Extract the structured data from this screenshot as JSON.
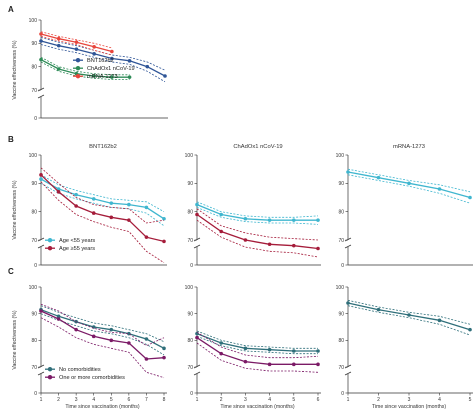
{
  "colors": {
    "bnt": "#2f5597",
    "chadox": "#2e8b57",
    "mrna": "#e8453c",
    "young": "#3fb6cf",
    "old": "#a51c3a",
    "nocomorb": "#2f6f7a",
    "comorb": "#7b1a66"
  },
  "chart_data": [
    {
      "panel": "A",
      "type": "line",
      "ylabel": "Vaccine effectiveness (%)",
      "x": [
        1,
        2,
        3,
        4,
        5,
        6,
        7,
        8
      ],
      "ylim": [
        0,
        100
      ],
      "xlim": [
        1,
        8
      ],
      "yticks": [
        70,
        80,
        90,
        100
      ],
      "legend": "inside-lower-center",
      "series": [
        {
          "name": "BNT162b2",
          "color_key": "bnt",
          "x": [
            1,
            2,
            3,
            4,
            5,
            6,
            7,
            8
          ],
          "values": [
            91.0,
            89.0,
            87.5,
            85.5,
            83.5,
            82.5,
            80.0,
            76.0
          ],
          "lower": [
            89.5,
            87.5,
            86.0,
            84.0,
            82.0,
            81.0,
            78.0,
            73.5
          ],
          "upper": [
            92.5,
            90.5,
            89.0,
            87.0,
            85.0,
            84.0,
            82.0,
            78.5
          ]
        },
        {
          "name": "ChAdOx1 nCoV-19",
          "color_key": "chadox",
          "x": [
            1,
            2,
            3,
            4,
            5,
            6
          ],
          "values": [
            83.0,
            79.0,
            77.0,
            76.0,
            75.5,
            75.5
          ],
          "lower": [
            82.0,
            78.0,
            76.0,
            75.0,
            74.5,
            74.5
          ],
          "upper": [
            84.0,
            80.0,
            78.0,
            77.0,
            76.5,
            76.5
          ]
        },
        {
          "name": "mRNA-1273",
          "color_key": "mrna",
          "x": [
            1,
            2,
            3,
            4,
            5
          ],
          "values": [
            94.0,
            92.0,
            90.5,
            88.5,
            86.5
          ],
          "lower": [
            93.0,
            91.0,
            89.5,
            87.0,
            85.0
          ],
          "upper": [
            95.0,
            93.0,
            91.5,
            90.0,
            88.0
          ]
        }
      ]
    },
    {
      "panel": "B",
      "type": "line",
      "ylabel": "Vaccine effectiveness (%)",
      "subtitles": [
        "BNT162b2",
        "ChAdOx1 nCoV-19",
        "mRNA-1273"
      ],
      "ylim": [
        0,
        100
      ],
      "yticks": [
        70,
        80,
        90,
        100
      ],
      "legend": "inside-lower-left",
      "series": [
        {
          "name": "Age <55 years",
          "color_key": "young",
          "subplot": 0,
          "x": [
            1,
            2,
            3,
            4,
            5,
            6,
            7,
            8
          ],
          "values": [
            91.5,
            88.0,
            86.0,
            84.5,
            83.0,
            82.5,
            81.5,
            77.5
          ],
          "lower": [
            90.0,
            86.5,
            84.5,
            83.0,
            81.5,
            81.0,
            79.5,
            75.0
          ],
          "upper": [
            93.0,
            89.5,
            87.5,
            86.0,
            84.5,
            84.0,
            83.5,
            80.0
          ]
        },
        {
          "name": "Age ≥55 years",
          "color_key": "old",
          "subplot": 0,
          "x": [
            1,
            2,
            3,
            4,
            5,
            6,
            7,
            8
          ],
          "values": [
            93.0,
            87.0,
            82.0,
            79.5,
            78.0,
            77.0,
            71.0,
            69.5
          ],
          "lower": [
            90.5,
            84.0,
            79.0,
            76.5,
            74.5,
            73.0,
            66.0,
            62.0
          ],
          "upper": [
            95.5,
            90.0,
            85.0,
            82.5,
            81.5,
            81.0,
            76.0,
            77.0
          ]
        },
        {
          "name": "Age <55 years",
          "color_key": "young",
          "subplot": 1,
          "x": [
            1,
            2,
            3,
            4,
            5,
            6
          ],
          "values": [
            82.5,
            79.0,
            77.5,
            77.0,
            77.0,
            77.0
          ],
          "lower": [
            81.5,
            78.0,
            76.5,
            76.0,
            76.0,
            75.5
          ],
          "upper": [
            83.5,
            80.0,
            78.5,
            78.0,
            78.0,
            78.5
          ]
        },
        {
          "name": "Age ≥55 years",
          "color_key": "old",
          "subplot": 1,
          "x": [
            1,
            2,
            3,
            4,
            5,
            6
          ],
          "values": [
            79.0,
            73.0,
            70.0,
            68.5,
            68.0,
            67.0
          ],
          "lower": [
            77.0,
            71.0,
            67.5,
            66.0,
            65.5,
            64.0
          ],
          "upper": [
            81.0,
            75.0,
            72.5,
            71.0,
            70.5,
            70.0
          ]
        },
        {
          "name": "Age <55 years",
          "color_key": "young",
          "subplot": 2,
          "x": [
            1,
            2,
            3,
            4,
            5
          ],
          "values": [
            94.0,
            92.0,
            90.0,
            88.0,
            85.0
          ],
          "lower": [
            93.0,
            91.0,
            89.0,
            86.5,
            83.0
          ],
          "upper": [
            95.0,
            93.0,
            91.0,
            89.5,
            87.0
          ]
        }
      ]
    },
    {
      "panel": "C",
      "type": "line",
      "ylabel": "Vaccine effectiveness (%)",
      "xlabel": "Time since vaccination (months)",
      "ylim": [
        0,
        100
      ],
      "yticks": [
        70,
        80,
        90,
        100
      ],
      "legend": "inside-lower-left",
      "series": [
        {
          "name": "No comorbidities",
          "color_key": "nocomorb",
          "subplot": 0,
          "x": [
            1,
            2,
            3,
            4,
            5,
            6,
            7,
            8
          ],
          "values": [
            91.5,
            89.0,
            87.0,
            85.0,
            84.0,
            82.5,
            80.5,
            77.0
          ],
          "lower": [
            90.0,
            87.5,
            85.5,
            83.5,
            82.5,
            81.0,
            78.5,
            74.5
          ],
          "upper": [
            93.0,
            90.5,
            88.5,
            86.5,
            85.5,
            84.0,
            82.5,
            79.5
          ]
        },
        {
          "name": "One or more comorbidities",
          "color_key": "comorb",
          "subplot": 0,
          "x": [
            1,
            2,
            3,
            4,
            5,
            6,
            7,
            8
          ],
          "values": [
            91.0,
            88.0,
            84.0,
            81.5,
            80.0,
            79.0,
            73.0,
            73.5
          ],
          "lower": [
            88.5,
            85.0,
            81.0,
            78.5,
            77.0,
            75.5,
            68.0,
            66.0
          ],
          "upper": [
            93.5,
            91.0,
            87.0,
            84.5,
            83.0,
            82.5,
            78.0,
            81.0
          ]
        },
        {
          "name": "No comorbidities",
          "color_key": "nocomorb",
          "subplot": 1,
          "x": [
            1,
            2,
            3,
            4,
            5,
            6
          ],
          "values": [
            82.5,
            79.0,
            77.0,
            76.5,
            76.0,
            76.0
          ],
          "lower": [
            81.5,
            78.0,
            76.0,
            75.5,
            75.0,
            75.0
          ],
          "upper": [
            83.5,
            80.0,
            78.0,
            77.5,
            77.0,
            77.0
          ]
        },
        {
          "name": "One or more comorbidities",
          "color_key": "comorb",
          "subplot": 1,
          "x": [
            1,
            2,
            3,
            4,
            5,
            6
          ],
          "values": [
            81.0,
            75.0,
            72.0,
            71.0,
            71.0,
            71.0
          ],
          "lower": [
            79.0,
            72.5,
            69.5,
            68.5,
            68.5,
            68.0
          ],
          "upper": [
            83.0,
            77.5,
            74.5,
            73.5,
            73.5,
            74.0
          ]
        },
        {
          "name": "No comorbidities",
          "color_key": "nocomorb",
          "subplot": 2,
          "x": [
            1,
            2,
            3,
            4,
            5
          ],
          "values": [
            94.0,
            91.5,
            89.5,
            87.5,
            84.0
          ],
          "lower": [
            93.0,
            90.5,
            88.5,
            86.0,
            82.0
          ],
          "upper": [
            95.0,
            92.5,
            90.5,
            89.0,
            86.0
          ]
        }
      ]
    }
  ]
}
